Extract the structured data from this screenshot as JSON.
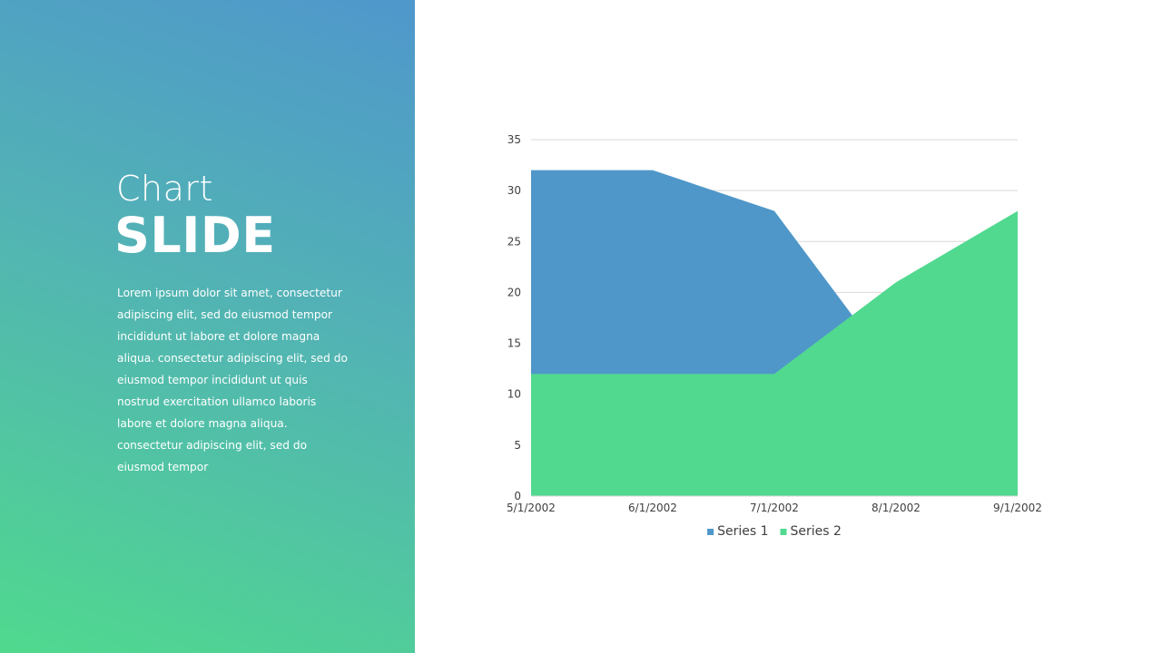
{
  "slide": {
    "title_light": "Chart",
    "title_bold": "SLIDE",
    "body": "Lorem ipsum dolor sit amet, consectetur adipiscing elit, sed do eiusmod tempor incididunt ut labore et dolore magna aliqua. consectetur adipiscing elit, sed do eiusmod tempor incididunt ut quis nostrud exercitation ullamco laboris labore et dolore magna aliqua. consectetur adipiscing elit, sed do eiusmod tempor"
  },
  "colors": {
    "series1": "#4f97c9",
    "series2": "#51d98f",
    "panel_top": "#4f97cc",
    "panel_bottom": "#50d98e",
    "grid": "#d9d9d9",
    "axis_text": "#404040"
  },
  "chart_data": {
    "type": "area",
    "stacked": false,
    "x": [
      "5/1/2002",
      "6/1/2002",
      "7/1/2002",
      "8/1/2002",
      "9/1/2002"
    ],
    "series": [
      {
        "name": "Series 1",
        "values": [
          32,
          32,
          28,
          12,
          15
        ]
      },
      {
        "name": "Series 2",
        "values": [
          12,
          12,
          12,
          21,
          28
        ]
      }
    ],
    "ylim": [
      0,
      35
    ],
    "yticks": [
      0,
      5,
      10,
      15,
      20,
      25,
      30,
      35
    ],
    "grid": true,
    "legend": "bottom"
  }
}
